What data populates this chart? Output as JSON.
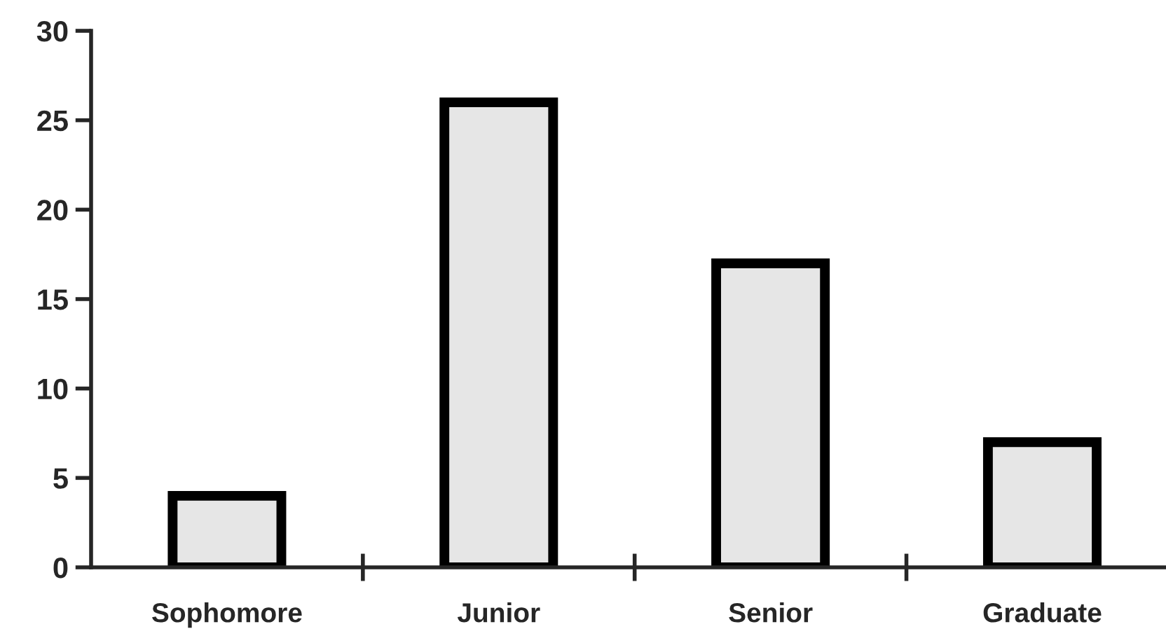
{
  "chart_data": {
    "type": "bar",
    "categories": [
      "Sophomore",
      "Junior",
      "Senior",
      "Graduate"
    ],
    "values": [
      4,
      26,
      17,
      7
    ],
    "color": "#e6e6e6",
    "ylim": [
      0,
      30
    ],
    "yticks": [
      0,
      5,
      10,
      15,
      20,
      25,
      30
    ],
    "grid": false
  }
}
